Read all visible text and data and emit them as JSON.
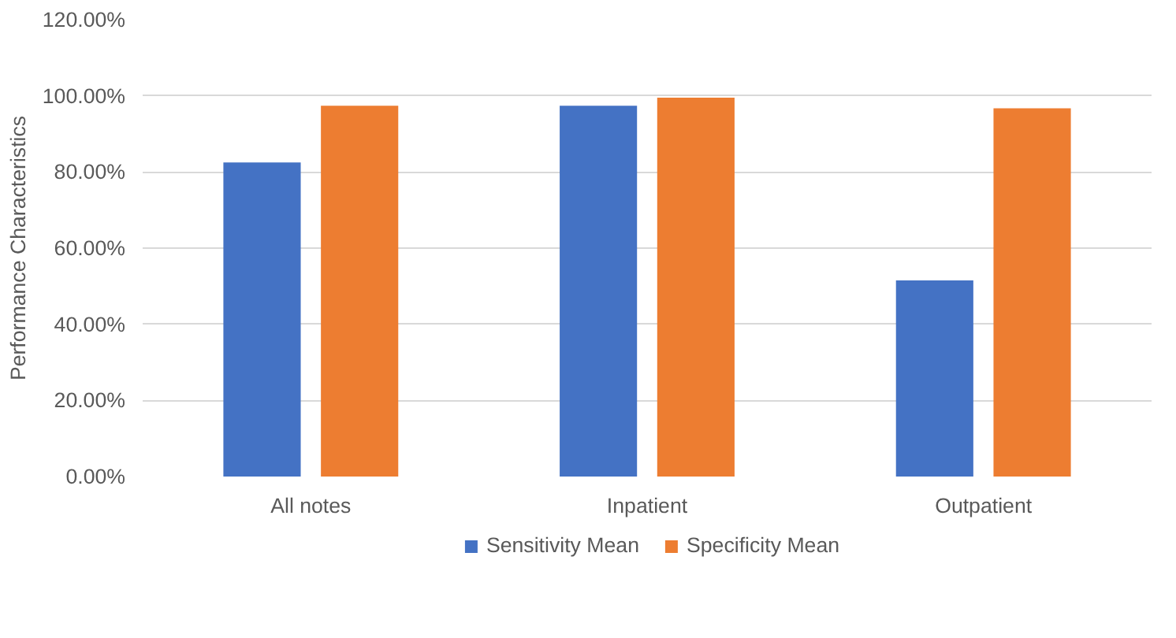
{
  "chart_data": {
    "type": "bar",
    "ylabel": "Performance Characteristics",
    "categories": [
      "All notes",
      "Inpatient",
      "Outpatient"
    ],
    "series": [
      {
        "name": "Sensitivity Mean",
        "color": "#4472c4",
        "values": [
          82.5,
          97.4,
          51.5
        ]
      },
      {
        "name": "Specificity Mean",
        "color": "#ed7d31",
        "values": [
          97.4,
          99.5,
          96.7
        ]
      }
    ],
    "ylim": [
      0,
      120
    ],
    "yticks": [
      {
        "value": 0,
        "label": "0.00%"
      },
      {
        "value": 20,
        "label": "20.00%"
      },
      {
        "value": 40,
        "label": "40.00%"
      },
      {
        "value": 60,
        "label": "60.00%"
      },
      {
        "value": 80,
        "label": "80.00%"
      },
      {
        "value": 100,
        "label": "100.00%"
      },
      {
        "value": 120,
        "label": "120.00%"
      }
    ],
    "grid": "y",
    "legend": "bottom"
  }
}
